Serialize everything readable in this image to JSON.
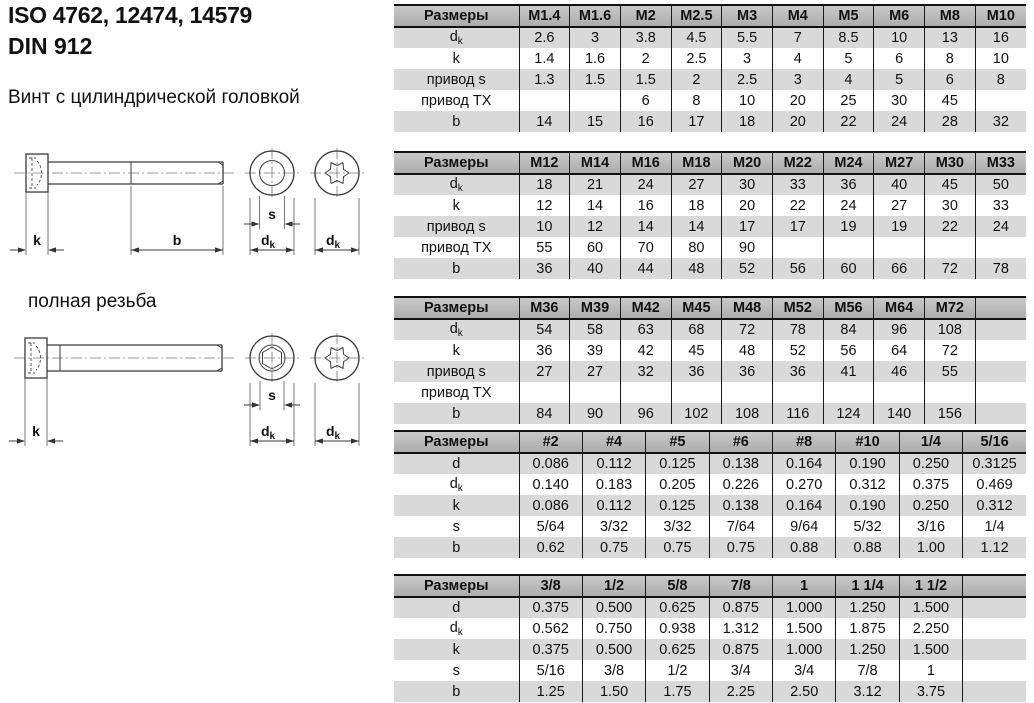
{
  "header": {
    "title_line1": "ISO 4762, 12474, 14579",
    "title_line2": "DIN 912",
    "subtitle": "Винт с цилиндрической головкой"
  },
  "drawings": {
    "full_thread_caption": "полная резьба",
    "labels": {
      "k": "k",
      "b": "b",
      "s": "s",
      "d_base": "d",
      "d_sub": "k"
    }
  },
  "colors": {
    "table_header_bg_top": "#c9c9c9",
    "table_header_bg_bottom": "#acacac",
    "row_stripe_bg": "#d9d9d9"
  },
  "tables": [
    {
      "name": "metric-sizes-m1.4-m10",
      "size_label": "Размеры",
      "columns": [
        "M1.4",
        "M1.6",
        "M2",
        "M2.5",
        "M3",
        "M4",
        "M5",
        "M6",
        "M8",
        "M10"
      ],
      "rows": [
        {
          "label": "d",
          "sub": "k",
          "cells": [
            "2.6",
            "3",
            "3.8",
            "4.5",
            "5.5",
            "7",
            "8.5",
            "10",
            "13",
            "16"
          ]
        },
        {
          "label": "k",
          "cells": [
            "1.4",
            "1.6",
            "2",
            "2.5",
            "3",
            "4",
            "5",
            "6",
            "8",
            "10"
          ]
        },
        {
          "label": "привод s",
          "cells": [
            "1.3",
            "1.5",
            "1.5",
            "2",
            "2.5",
            "3",
            "4",
            "5",
            "6",
            "8"
          ]
        },
        {
          "label": "привод TX",
          "cells": [
            "",
            "",
            "6",
            "8",
            "10",
            "20",
            "25",
            "30",
            "45",
            ""
          ]
        },
        {
          "label": "b",
          "cells": [
            "14",
            "15",
            "16",
            "17",
            "18",
            "20",
            "22",
            "24",
            "28",
            "32"
          ]
        }
      ]
    },
    {
      "name": "metric-sizes-m12-m33",
      "size_label": "Размеры",
      "columns": [
        "M12",
        "M14",
        "M16",
        "M18",
        "M20",
        "M22",
        "M24",
        "M27",
        "M30",
        "M33"
      ],
      "rows": [
        {
          "label": "d",
          "sub": "k",
          "cells": [
            "18",
            "21",
            "24",
            "27",
            "30",
            "33",
            "36",
            "40",
            "45",
            "50"
          ]
        },
        {
          "label": "k",
          "cells": [
            "12",
            "14",
            "16",
            "18",
            "20",
            "22",
            "24",
            "27",
            "30",
            "33"
          ]
        },
        {
          "label": "привод s",
          "cells": [
            "10",
            "12",
            "14",
            "14",
            "17",
            "17",
            "19",
            "19",
            "22",
            "24"
          ]
        },
        {
          "label": "привод TX",
          "cells": [
            "55",
            "60",
            "70",
            "80",
            "90",
            "",
            "",
            "",
            "",
            ""
          ]
        },
        {
          "label": "b",
          "cells": [
            "36",
            "40",
            "44",
            "48",
            "52",
            "56",
            "60",
            "66",
            "72",
            "78"
          ]
        }
      ]
    },
    {
      "name": "metric-sizes-m36-m72",
      "size_label": "Размеры",
      "columns": [
        "M36",
        "M39",
        "M42",
        "M45",
        "M48",
        "M52",
        "M56",
        "M64",
        "M72",
        ""
      ],
      "rows": [
        {
          "label": "d",
          "sub": "k",
          "cells": [
            "54",
            "58",
            "63",
            "68",
            "72",
            "78",
            "84",
            "96",
            "108",
            ""
          ]
        },
        {
          "label": "k",
          "cells": [
            "36",
            "39",
            "42",
            "45",
            "48",
            "52",
            "56",
            "64",
            "72",
            ""
          ]
        },
        {
          "label": "привод s",
          "cells": [
            "27",
            "27",
            "32",
            "36",
            "36",
            "36",
            "41",
            "46",
            "55",
            ""
          ]
        },
        {
          "label": "привод TX",
          "cells": [
            "",
            "",
            "",
            "",
            "",
            "",
            "",
            "",
            "",
            ""
          ]
        },
        {
          "label": "b",
          "cells": [
            "84",
            "90",
            "96",
            "102",
            "108",
            "116",
            "124",
            "140",
            "156",
            ""
          ]
        }
      ]
    },
    {
      "name": "inch-sizes-no2-5-16",
      "size_label": "Размеры",
      "columns": [
        "#2",
        "#4",
        "#5",
        "#6",
        "#8",
        "#10",
        "1/4",
        "5/16"
      ],
      "rows": [
        {
          "label": "d",
          "cells": [
            "0.086",
            "0.112",
            "0.125",
            "0.138",
            "0.164",
            "0.190",
            "0.250",
            "0.3125"
          ]
        },
        {
          "label": "d",
          "sub": "k",
          "cells": [
            "0.140",
            "0.183",
            "0.205",
            "0.226",
            "0.270",
            "0.312",
            "0.375",
            "0.469"
          ]
        },
        {
          "label": "k",
          "cells": [
            "0.086",
            "0.112",
            "0.125",
            "0.138",
            "0.164",
            "0.190",
            "0.250",
            "0.312"
          ]
        },
        {
          "label": "s",
          "cells": [
            "5/64",
            "3/32",
            "3/32",
            "7/64",
            "9/64",
            "5/32",
            "3/16",
            "1/4"
          ]
        },
        {
          "label": "b",
          "cells": [
            "0.62",
            "0.75",
            "0.75",
            "0.75",
            "0.88",
            "0.88",
            "1.00",
            "1.12"
          ]
        }
      ]
    },
    {
      "name": "inch-sizes-3-8-1-1-2",
      "size_label": "Размеры",
      "columns": [
        "3/8",
        "1/2",
        "5/8",
        "7/8",
        "1",
        "1 1/4",
        "1 1/2",
        ""
      ],
      "rows": [
        {
          "label": "d",
          "cells": [
            "0.375",
            "0.500",
            "0.625",
            "0.875",
            "1.000",
            "1.250",
            "1.500",
            ""
          ]
        },
        {
          "label": "d",
          "sub": "k",
          "cells": [
            "0.562",
            "0.750",
            "0.938",
            "1.312",
            "1.500",
            "1.875",
            "2.250",
            ""
          ]
        },
        {
          "label": "k",
          "cells": [
            "0.375",
            "0.500",
            "0.625",
            "0.875",
            "1.000",
            "1.250",
            "1.500",
            ""
          ]
        },
        {
          "label": "s",
          "cells": [
            "5/16",
            "3/8",
            "1/2",
            "3/4",
            "3/4",
            "7/8",
            "1",
            ""
          ]
        },
        {
          "label": "b",
          "cells": [
            "1.25",
            "1.50",
            "1.75",
            "2.25",
            "2.50",
            "3.12",
            "3.75",
            ""
          ]
        }
      ]
    }
  ]
}
